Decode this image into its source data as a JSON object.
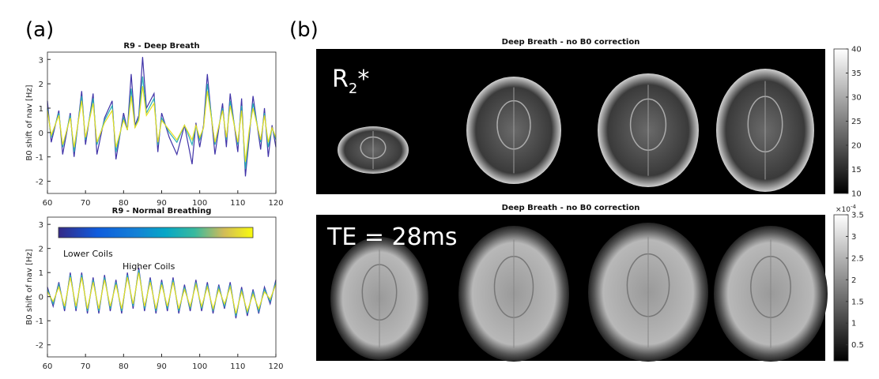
{
  "panel_labels": [
    "(a)",
    "(b)"
  ],
  "chart_data": [
    {
      "type": "line",
      "title": "R9  - Deep Breath",
      "y_label": "B0 shift of nav [Hz]",
      "x": [
        60,
        61,
        63,
        64,
        66,
        67,
        69,
        70,
        72,
        73,
        75,
        77,
        78,
        80,
        81,
        82,
        83,
        84,
        85,
        86,
        88,
        89,
        90,
        92,
        94,
        96,
        98,
        99,
        100,
        101,
        102,
        104,
        106,
        107,
        108,
        110,
        111,
        112,
        113,
        114,
        116,
        117,
        118,
        119,
        120
      ],
      "xlim": [
        60,
        120
      ],
      "xticks": [
        60,
        70,
        80,
        90,
        100,
        110,
        120
      ],
      "ylim": [
        -2.5,
        3.3
      ],
      "yticks": [
        -2,
        -1,
        0,
        1,
        2,
        3
      ],
      "series": [
        {
          "color": "#4033a8",
          "values": [
            1.3,
            -0.4,
            0.9,
            -0.9,
            0.8,
            -1.0,
            1.7,
            -0.5,
            1.6,
            -0.9,
            0.6,
            1.3,
            -1.1,
            0.8,
            0.1,
            2.4,
            0.3,
            0.7,
            3.1,
            1.0,
            1.6,
            -0.8,
            0.8,
            -0.2,
            -0.9,
            0.3,
            -1.3,
            0.4,
            -0.6,
            0.3,
            2.4,
            -0.9,
            1.2,
            -0.6,
            1.6,
            -0.8,
            1.4,
            -1.8,
            -0.2,
            1.5,
            -0.7,
            1.0,
            -1.0,
            0.3,
            -0.6
          ]
        },
        {
          "color": "#2ab0b5",
          "values": [
            1.0,
            -0.2,
            0.8,
            -0.6,
            0.7,
            -0.8,
            1.5,
            -0.3,
            1.4,
            -0.5,
            0.5,
            1.1,
            -0.8,
            0.6,
            0.1,
            1.8,
            0.2,
            0.6,
            2.3,
            0.8,
            1.4,
            -0.5,
            0.6,
            0.0,
            -0.4,
            0.3,
            -0.5,
            0.3,
            -0.3,
            0.2,
            2.0,
            -0.5,
            1.0,
            -0.3,
            1.3,
            -0.5,
            1.1,
            -1.5,
            0.0,
            1.2,
            -0.4,
            0.8,
            -0.6,
            0.2,
            -0.3
          ]
        },
        {
          "color": "#e8de20",
          "values": [
            0.9,
            -0.1,
            0.7,
            -0.5,
            0.6,
            -0.6,
            1.3,
            -0.2,
            1.2,
            -0.4,
            0.4,
            0.9,
            -0.6,
            0.5,
            0.1,
            1.5,
            0.2,
            0.5,
            1.9,
            0.7,
            1.2,
            -0.4,
            0.5,
            0.1,
            -0.3,
            0.3,
            -0.3,
            0.3,
            -0.2,
            0.2,
            1.7,
            -0.4,
            0.9,
            -0.2,
            1.1,
            -0.4,
            0.9,
            -1.2,
            0.1,
            1.0,
            -0.3,
            0.7,
            -0.4,
            0.2,
            -0.2
          ]
        }
      ]
    },
    {
      "type": "line",
      "title": "R9  - Normal Breathing",
      "y_label": "B0 shift of nav [Hz]",
      "annotations": [
        "Lower Coils",
        "Higher Coils"
      ],
      "x": [
        60,
        61.5,
        63,
        64.5,
        66,
        67.5,
        69,
        70.5,
        72,
        73.5,
        75,
        76.5,
        78,
        79.5,
        81,
        82.5,
        84,
        85.5,
        87,
        88.5,
        90,
        91.5,
        93,
        94.5,
        96,
        97.5,
        99,
        100.5,
        102,
        103.5,
        105,
        106.5,
        108,
        109.5,
        111,
        112.5,
        114,
        115.5,
        117,
        118.5,
        120
      ],
      "xlim": [
        60,
        120
      ],
      "xticks": [
        60,
        70,
        80,
        90,
        100,
        110,
        120
      ],
      "ylim": [
        -2.5,
        3.3
      ],
      "yticks": [
        -2,
        -1,
        0,
        1,
        2,
        3
      ],
      "series": [
        {
          "color": "#4033a8",
          "values": [
            0.4,
            -0.4,
            0.6,
            -0.6,
            1.0,
            -0.6,
            1.0,
            -0.7,
            0.8,
            -0.7,
            0.9,
            -0.6,
            0.7,
            -0.7,
            1.0,
            -0.5,
            1.2,
            -0.6,
            0.8,
            -0.7,
            0.7,
            -0.6,
            0.8,
            -0.7,
            0.5,
            -0.6,
            0.7,
            -0.6,
            0.6,
            -0.7,
            0.5,
            -0.5,
            0.6,
            -0.9,
            0.4,
            -0.8,
            0.3,
            -0.7,
            0.4,
            -0.3,
            0.7
          ]
        },
        {
          "color": "#2ab0b5",
          "values": [
            0.3,
            -0.3,
            0.5,
            -0.5,
            0.9,
            -0.5,
            0.9,
            -0.6,
            0.7,
            -0.6,
            0.8,
            -0.5,
            0.6,
            -0.6,
            0.9,
            -0.4,
            1.1,
            -0.5,
            0.7,
            -0.6,
            0.6,
            -0.5,
            0.7,
            -0.6,
            0.4,
            -0.5,
            0.6,
            -0.5,
            0.5,
            -0.6,
            0.4,
            -0.4,
            0.5,
            -0.8,
            0.3,
            -0.7,
            0.2,
            -0.6,
            0.3,
            -0.2,
            0.6
          ]
        },
        {
          "color": "#e8de20",
          "values": [
            0.2,
            -0.2,
            0.4,
            -0.4,
            0.8,
            -0.4,
            0.8,
            -0.5,
            0.6,
            -0.5,
            0.7,
            -0.4,
            0.5,
            -0.5,
            0.8,
            -0.3,
            1.0,
            -0.4,
            0.6,
            -0.5,
            0.5,
            -0.4,
            0.6,
            -0.5,
            0.3,
            -0.4,
            0.5,
            -0.4,
            0.4,
            -0.5,
            0.3,
            -0.3,
            0.4,
            -0.7,
            0.2,
            -0.6,
            0.1,
            -0.5,
            0.2,
            -0.1,
            0.5
          ]
        }
      ]
    }
  ],
  "images": [
    {
      "title": "Deep Breath - no B0 correction",
      "label": [
        "R",
        "2",
        "*"
      ],
      "colorbar": {
        "lim": [
          10,
          40
        ],
        "ticks": [
          10,
          15,
          20,
          25,
          30,
          35,
          40
        ]
      }
    },
    {
      "title": "Deep Breath - no B0 correction",
      "label": [
        "TE = 28ms"
      ],
      "colorbar": {
        "lim": [
          0.13,
          3.5
        ],
        "ticks": [
          0.5,
          1,
          1.5,
          2,
          2.5,
          3,
          3.5
        ],
        "exponent": [
          "×10",
          "-4"
        ]
      }
    }
  ]
}
